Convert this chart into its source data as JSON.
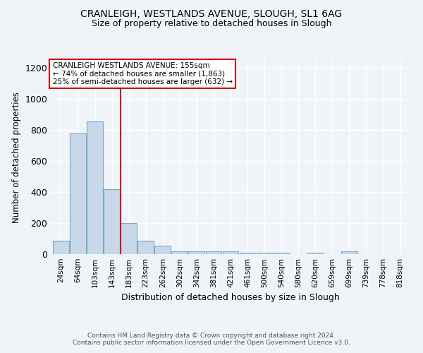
{
  "title1": "CRANLEIGH, WESTLANDS AVENUE, SLOUGH, SL1 6AG",
  "title2": "Size of property relative to detached houses in Slough",
  "xlabel": "Distribution of detached houses by size in Slough",
  "ylabel": "Number of detached properties",
  "footer1": "Contains HM Land Registry data © Crown copyright and database right 2024.",
  "footer2": "Contains public sector information licensed under the Open Government Licence v3.0.",
  "categories": [
    "24sqm",
    "64sqm",
    "103sqm",
    "143sqm",
    "183sqm",
    "223sqm",
    "262sqm",
    "302sqm",
    "342sqm",
    "381sqm",
    "421sqm",
    "461sqm",
    "500sqm",
    "540sqm",
    "580sqm",
    "620sqm",
    "659sqm",
    "699sqm",
    "739sqm",
    "778sqm",
    "818sqm"
  ],
  "values": [
    88,
    775,
    855,
    420,
    200,
    88,
    55,
    20,
    18,
    18,
    18,
    10,
    10,
    10,
    0,
    10,
    0,
    18,
    0,
    0,
    0
  ],
  "bar_color": "#c8d8e8",
  "bar_edge_color": "#7aaac8",
  "ylim": [
    0,
    1250
  ],
  "yticks": [
    0,
    200,
    400,
    600,
    800,
    1000,
    1200
  ],
  "vline_x": 3.5,
  "vline_color": "#cc0000",
  "annotation_title": "CRANLEIGH WESTLANDS AVENUE: 155sqm",
  "annotation_line1": "← 74% of detached houses are smaller (1,863)",
  "annotation_line2": "25% of semi-detached houses are larger (632) →",
  "annotation_box_color": "#ffffff",
  "annotation_box_edge": "#cc0000",
  "background_color": "#f0f4f8"
}
